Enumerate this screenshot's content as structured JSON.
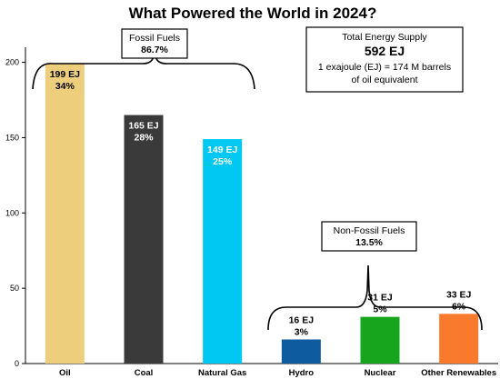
{
  "chart_data": {
    "type": "bar",
    "title": "What Powered the World in 2024?",
    "categories": [
      "Oil",
      "Coal",
      "Natural Gas",
      "Hydro",
      "Nuclear",
      "Other Renewables"
    ],
    "values": [
      199,
      165,
      149,
      16,
      31,
      33
    ],
    "value_labels": [
      "199 EJ",
      "165 EJ",
      "149 EJ",
      "16 EJ",
      "31 EJ",
      "33 EJ"
    ],
    "percent_labels": [
      "34%",
      "28%",
      "25%",
      "3%",
      "5%",
      "6%"
    ],
    "colors": [
      "#EDCE7C",
      "#3A3A3A",
      "#00C8F2",
      "#0F5BA0",
      "#17A51E",
      "#F97A2C"
    ],
    "label_colors": [
      "#000000",
      "#ffffff",
      "#ffffff",
      "#000000",
      "#000000",
      "#000000"
    ],
    "ylim": [
      0,
      210
    ],
    "yticks": [
      0,
      50,
      100,
      150,
      200
    ],
    "grid": false,
    "groups": [
      {
        "label": "Fossil Fuels",
        "value": "86.7%",
        "categories": [
          "Oil",
          "Coal",
          "Natural Gas"
        ]
      },
      {
        "label": "Non-Fossil Fuels",
        "value": "13.5%",
        "categories": [
          "Hydro",
          "Nuclear",
          "Other Renewables"
        ]
      }
    ],
    "annotation": {
      "line1": "Total Energy Supply",
      "line2": "592 EJ",
      "line3": "1 exajoule (EJ) = 174 M barrels",
      "line4": "of oil equivalent"
    }
  }
}
